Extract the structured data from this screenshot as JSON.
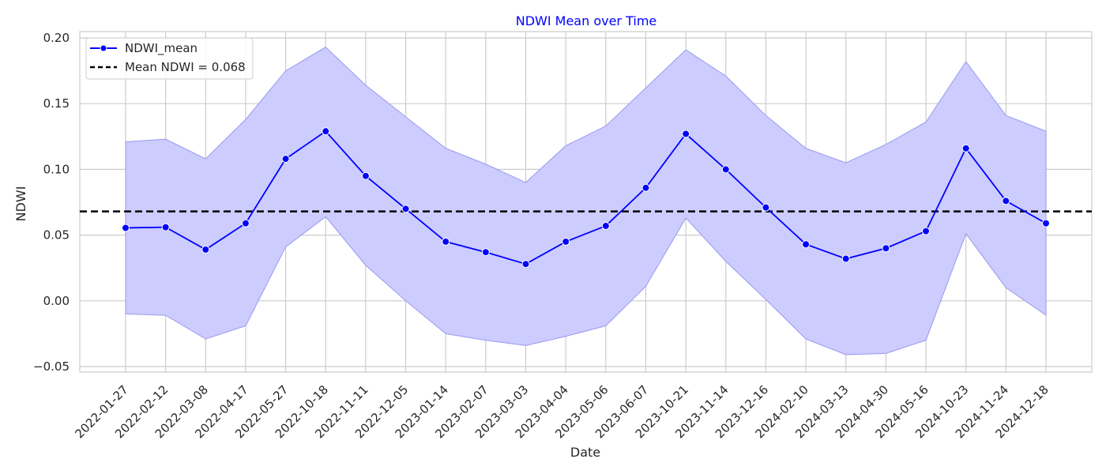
{
  "chart_data": {
    "type": "line",
    "title": "NDWI Mean over Time",
    "title_color": "#0000ff",
    "xlabel": "Date",
    "ylabel": "NDWI",
    "ylim": [
      -0.05,
      0.2
    ],
    "yticks": [
      -0.05,
      0.0,
      0.05,
      0.1,
      0.15,
      0.2
    ],
    "ytick_labels": [
      "−0.05",
      "0.00",
      "0.05",
      "0.10",
      "0.15",
      "0.20"
    ],
    "grid": true,
    "legend_position": "top-left",
    "categories": [
      "2022-01-27",
      "2022-02-12",
      "2022-03-08",
      "2022-04-17",
      "2022-05-27",
      "2022-10-18",
      "2022-11-11",
      "2022-12-05",
      "2023-01-14",
      "2023-02-07",
      "2023-03-03",
      "2023-04-04",
      "2023-05-06",
      "2023-06-07",
      "2023-10-21",
      "2023-11-14",
      "2023-12-16",
      "2024-02-10",
      "2024-03-13",
      "2024-04-30",
      "2024-05-16",
      "2024-10-23",
      "2024-11-24",
      "2024-12-18"
    ],
    "series": [
      {
        "name": "NDWI_mean",
        "color": "#0000ff",
        "marker": "circle",
        "values": [
          0.0555,
          0.056,
          0.039,
          0.059,
          0.108,
          0.129,
          0.095,
          0.07,
          0.045,
          0.037,
          0.028,
          0.045,
          0.057,
          0.086,
          0.127,
          0.1,
          0.071,
          0.043,
          0.032,
          0.04,
          0.053,
          0.116,
          0.076,
          0.059
        ],
        "band_upper": [
          0.121,
          0.123,
          0.108,
          0.138,
          0.175,
          0.193,
          0.164,
          0.14,
          0.116,
          0.104,
          0.09,
          0.118,
          0.133,
          0.162,
          0.191,
          0.171,
          0.141,
          0.116,
          0.105,
          0.119,
          0.136,
          0.182,
          0.141,
          0.129
        ],
        "band_lower": [
          -0.01,
          -0.011,
          -0.029,
          -0.019,
          0.041,
          0.064,
          0.027,
          0.0,
          -0.025,
          -0.03,
          -0.034,
          -0.027,
          -0.019,
          0.011,
          0.063,
          0.03,
          0.001,
          -0.029,
          -0.041,
          -0.04,
          -0.03,
          0.051,
          0.01,
          -0.011
        ],
        "band_color": "#ccccff"
      },
      {
        "name": "Mean NDWI = 0.068",
        "type": "hline",
        "value": 0.068,
        "color": "#000000",
        "style": "dashed"
      }
    ]
  }
}
